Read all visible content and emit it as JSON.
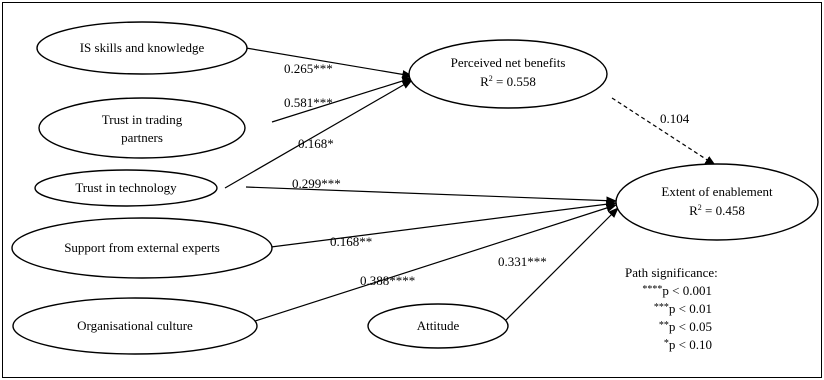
{
  "nodes": {
    "is_skills": {
      "lines": [
        "IS skills and knowledge"
      ]
    },
    "trust_partners": {
      "lines": [
        "Trust in trading",
        "partners"
      ]
    },
    "trust_tech": {
      "lines": [
        "Trust in technology"
      ]
    },
    "support": {
      "lines": [
        "Support from external experts"
      ]
    },
    "culture": {
      "lines": [
        "Organisational culture"
      ]
    },
    "attitude": {
      "lines": [
        "Attitude"
      ]
    },
    "benefits": {
      "lines": [
        "Perceived net benefits"
      ],
      "r2": "0.558"
    },
    "enablement": {
      "lines": [
        "Extent of enablement"
      ],
      "r2": "0.458"
    }
  },
  "paths": {
    "is_skills_to_benefits": "0.265***",
    "trust_partners_to_benefits": "0.581***",
    "trust_tech_to_benefits": "0.168*",
    "trust_tech_to_enablement": "0.299***",
    "support_to_enablement": "0.168**",
    "culture_to_enablement": "0.388****",
    "attitude_to_enablement": "0.331***",
    "benefits_to_enablement": "0.104"
  },
  "significance": {
    "title": "Path significance:",
    "levels": [
      {
        "stars": "****",
        "text": "p < 0.001"
      },
      {
        "stars": "***",
        "text": "p < 0.01"
      },
      {
        "stars": "**",
        "text": "p < 0.05"
      },
      {
        "stars": "*",
        "text": "p < 0.10"
      }
    ]
  }
}
